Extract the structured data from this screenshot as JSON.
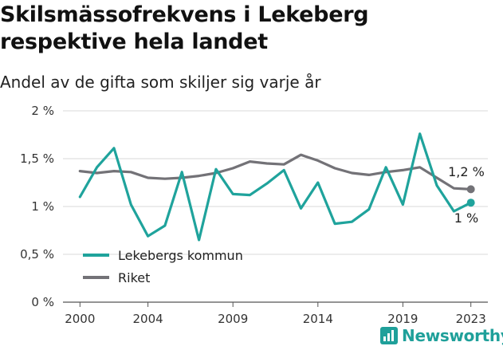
{
  "header": {
    "title_line1": "Skilsmässofrekvens i Lekeberg",
    "title_line2": "respektive hela landet",
    "subtitle": "Andel av de gifta som skiljer sig varje år"
  },
  "brand": {
    "name": "Newsworthy",
    "icon": "bar-chart-badge-icon",
    "color": "#1fa09a"
  },
  "chart_data": {
    "type": "line",
    "title": "Skilsmässofrekvens i Lekeberg respektive hela landet",
    "subtitle": "Andel av de gifta som skiljer sig varje år",
    "xlabel": "",
    "ylabel": "",
    "x": [
      2000,
      2001,
      2002,
      2003,
      2004,
      2005,
      2006,
      2007,
      2008,
      2009,
      2010,
      2011,
      2012,
      2013,
      2014,
      2015,
      2016,
      2017,
      2018,
      2019,
      2020,
      2021,
      2022,
      2023
    ],
    "xticks": [
      2000,
      2004,
      2009,
      2014,
      2019,
      2023
    ],
    "xlim": [
      1999,
      2024
    ],
    "ylim": [
      0,
      2
    ],
    "yticks": [
      0,
      0.5,
      1,
      1.5,
      2
    ],
    "ytick_labels": [
      "0 %",
      "0,5 %",
      "1 %",
      "1,5 %",
      "2 %"
    ],
    "grid": "horizontal",
    "legend_position": "bottom-left",
    "series": [
      {
        "name": "Lekebergs kommun",
        "color": "#1fa39c",
        "values": [
          1.1,
          1.41,
          1.61,
          1.02,
          0.69,
          0.8,
          1.36,
          0.65,
          1.39,
          1.13,
          1.12,
          1.24,
          1.38,
          0.98,
          1.25,
          0.82,
          0.84,
          0.97,
          1.41,
          1.02,
          1.76,
          1.22,
          0.95,
          1.04
        ],
        "end_label": "1 %"
      },
      {
        "name": "Riket",
        "color": "#737277",
        "values": [
          1.37,
          1.35,
          1.37,
          1.36,
          1.3,
          1.29,
          1.3,
          1.32,
          1.35,
          1.4,
          1.47,
          1.45,
          1.44,
          1.54,
          1.48,
          1.4,
          1.35,
          1.33,
          1.36,
          1.38,
          1.41,
          1.3,
          1.19,
          1.18
        ],
        "end_label": "1,2 %"
      }
    ]
  }
}
